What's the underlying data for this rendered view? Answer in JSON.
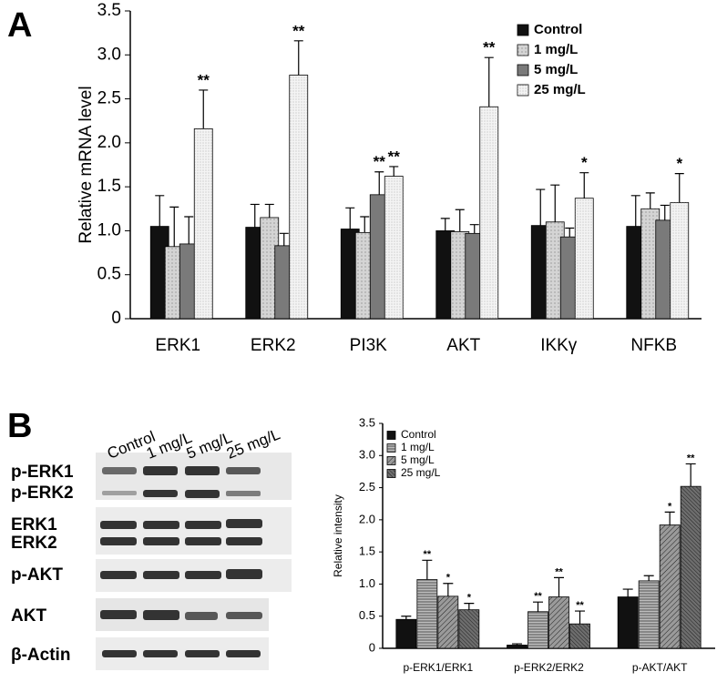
{
  "panels": [
    "A",
    "B"
  ],
  "blot": {
    "lanes": [
      "Control",
      "1 mg/L",
      "5 mg/L",
      "25 mg/L"
    ],
    "rows": [
      "p-ERK1",
      "p-ERK2",
      "ERK1",
      "ERK2",
      "p-AKT",
      "AKT",
      "β-Actin"
    ]
  },
  "chart_data": [
    {
      "type": "bar",
      "y_label": "Relative mRNA level",
      "categories": [
        "ERK1",
        "ERK2",
        "PI3K",
        "AKT",
        "IKKγ",
        "NFKB"
      ],
      "ylim": [
        0,
        3.5
      ],
      "yticks": [
        0,
        0.5,
        {
          "value": 1,
          "label": "1.0"
        },
        1.5,
        {
          "value": 2,
          "label": "2.0"
        },
        2.5,
        {
          "value": 3,
          "label": "3.0"
        },
        3.5
      ],
      "legend": "top-right",
      "series": [
        {
          "name": "Control",
          "color": "#111111",
          "values": [
            1.05,
            1.04,
            1.02,
            1.0,
            1.06,
            1.05
          ],
          "errors": [
            0.35,
            0.26,
            0.24,
            0.14,
            0.41,
            0.35
          ],
          "significance": [
            null,
            null,
            null,
            null,
            null,
            null
          ]
        },
        {
          "name": "1 mg/L",
          "color": "#d4d4d4",
          "values": [
            0.82,
            1.15,
            0.98,
            0.99,
            1.1,
            1.25
          ],
          "errors": [
            0.45,
            0.15,
            0.18,
            0.25,
            0.42,
            0.18
          ],
          "significance": [
            null,
            null,
            null,
            null,
            null,
            null
          ]
        },
        {
          "name": "5 mg/L",
          "color": "#7a7a7a",
          "values": [
            0.85,
            0.83,
            1.41,
            0.97,
            0.93,
            1.12
          ],
          "errors": [
            0.31,
            0.14,
            0.26,
            0.1,
            0.1,
            0.17
          ],
          "significance": [
            null,
            null,
            "**",
            null,
            null,
            null
          ]
        },
        {
          "name": "25 mg/L",
          "color": "#f4f4f4",
          "values": [
            2.16,
            2.77,
            1.62,
            2.41,
            1.37,
            1.32
          ],
          "errors": [
            0.44,
            0.39,
            0.11,
            0.56,
            0.29,
            0.33
          ],
          "significance": [
            "**",
            "**",
            "**",
            "**",
            "*",
            "*"
          ]
        }
      ]
    },
    {
      "type": "bar",
      "y_label": "Relative intensity",
      "categories": [
        "p-ERK1/ERK1",
        "p-ERK2/ERK2",
        "p-AKT/AKT"
      ],
      "ylim": [
        0,
        3.5
      ],
      "yticks": [
        0,
        0.5,
        {
          "value": 1,
          "label": "1.0"
        },
        1.5,
        {
          "value": 2,
          "label": "2.0"
        },
        2.5,
        {
          "value": 3,
          "label": "3.0"
        },
        3.5
      ],
      "legend": "top-left",
      "series": [
        {
          "name": "Control",
          "color": "#111111",
          "values": [
            0.45,
            0.05,
            0.8
          ],
          "errors": [
            0.05,
            0.02,
            0.12
          ],
          "significance": [
            null,
            null,
            null
          ]
        },
        {
          "name": "1 mg/L",
          "color": "#bdbdbd",
          "values": [
            1.07,
            0.57,
            1.05
          ],
          "errors": [
            0.3,
            0.15,
            0.08
          ],
          "significance": [
            "**",
            "**",
            null
          ]
        },
        {
          "name": "5 mg/L",
          "color": "#9a9a9a",
          "values": [
            0.81,
            0.8,
            1.92
          ],
          "errors": [
            0.2,
            0.3,
            0.2
          ],
          "significance": [
            "*",
            "**",
            "*"
          ]
        },
        {
          "name": "25 mg/L",
          "color": "#6e6e6e",
          "values": [
            0.6,
            0.38,
            2.52
          ],
          "errors": [
            0.1,
            0.2,
            0.35
          ],
          "significance": [
            "*",
            "**",
            "**"
          ]
        }
      ]
    }
  ]
}
